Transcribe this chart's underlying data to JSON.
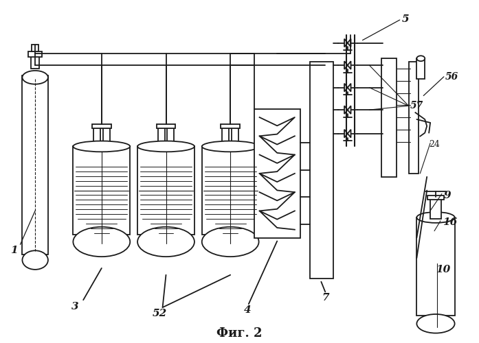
{
  "bg_color": "#ffffff",
  "line_color": "#1a1a1a",
  "caption": "Фиг. 2",
  "fig_w": 6.97,
  "fig_h": 5.0,
  "dpi": 100
}
